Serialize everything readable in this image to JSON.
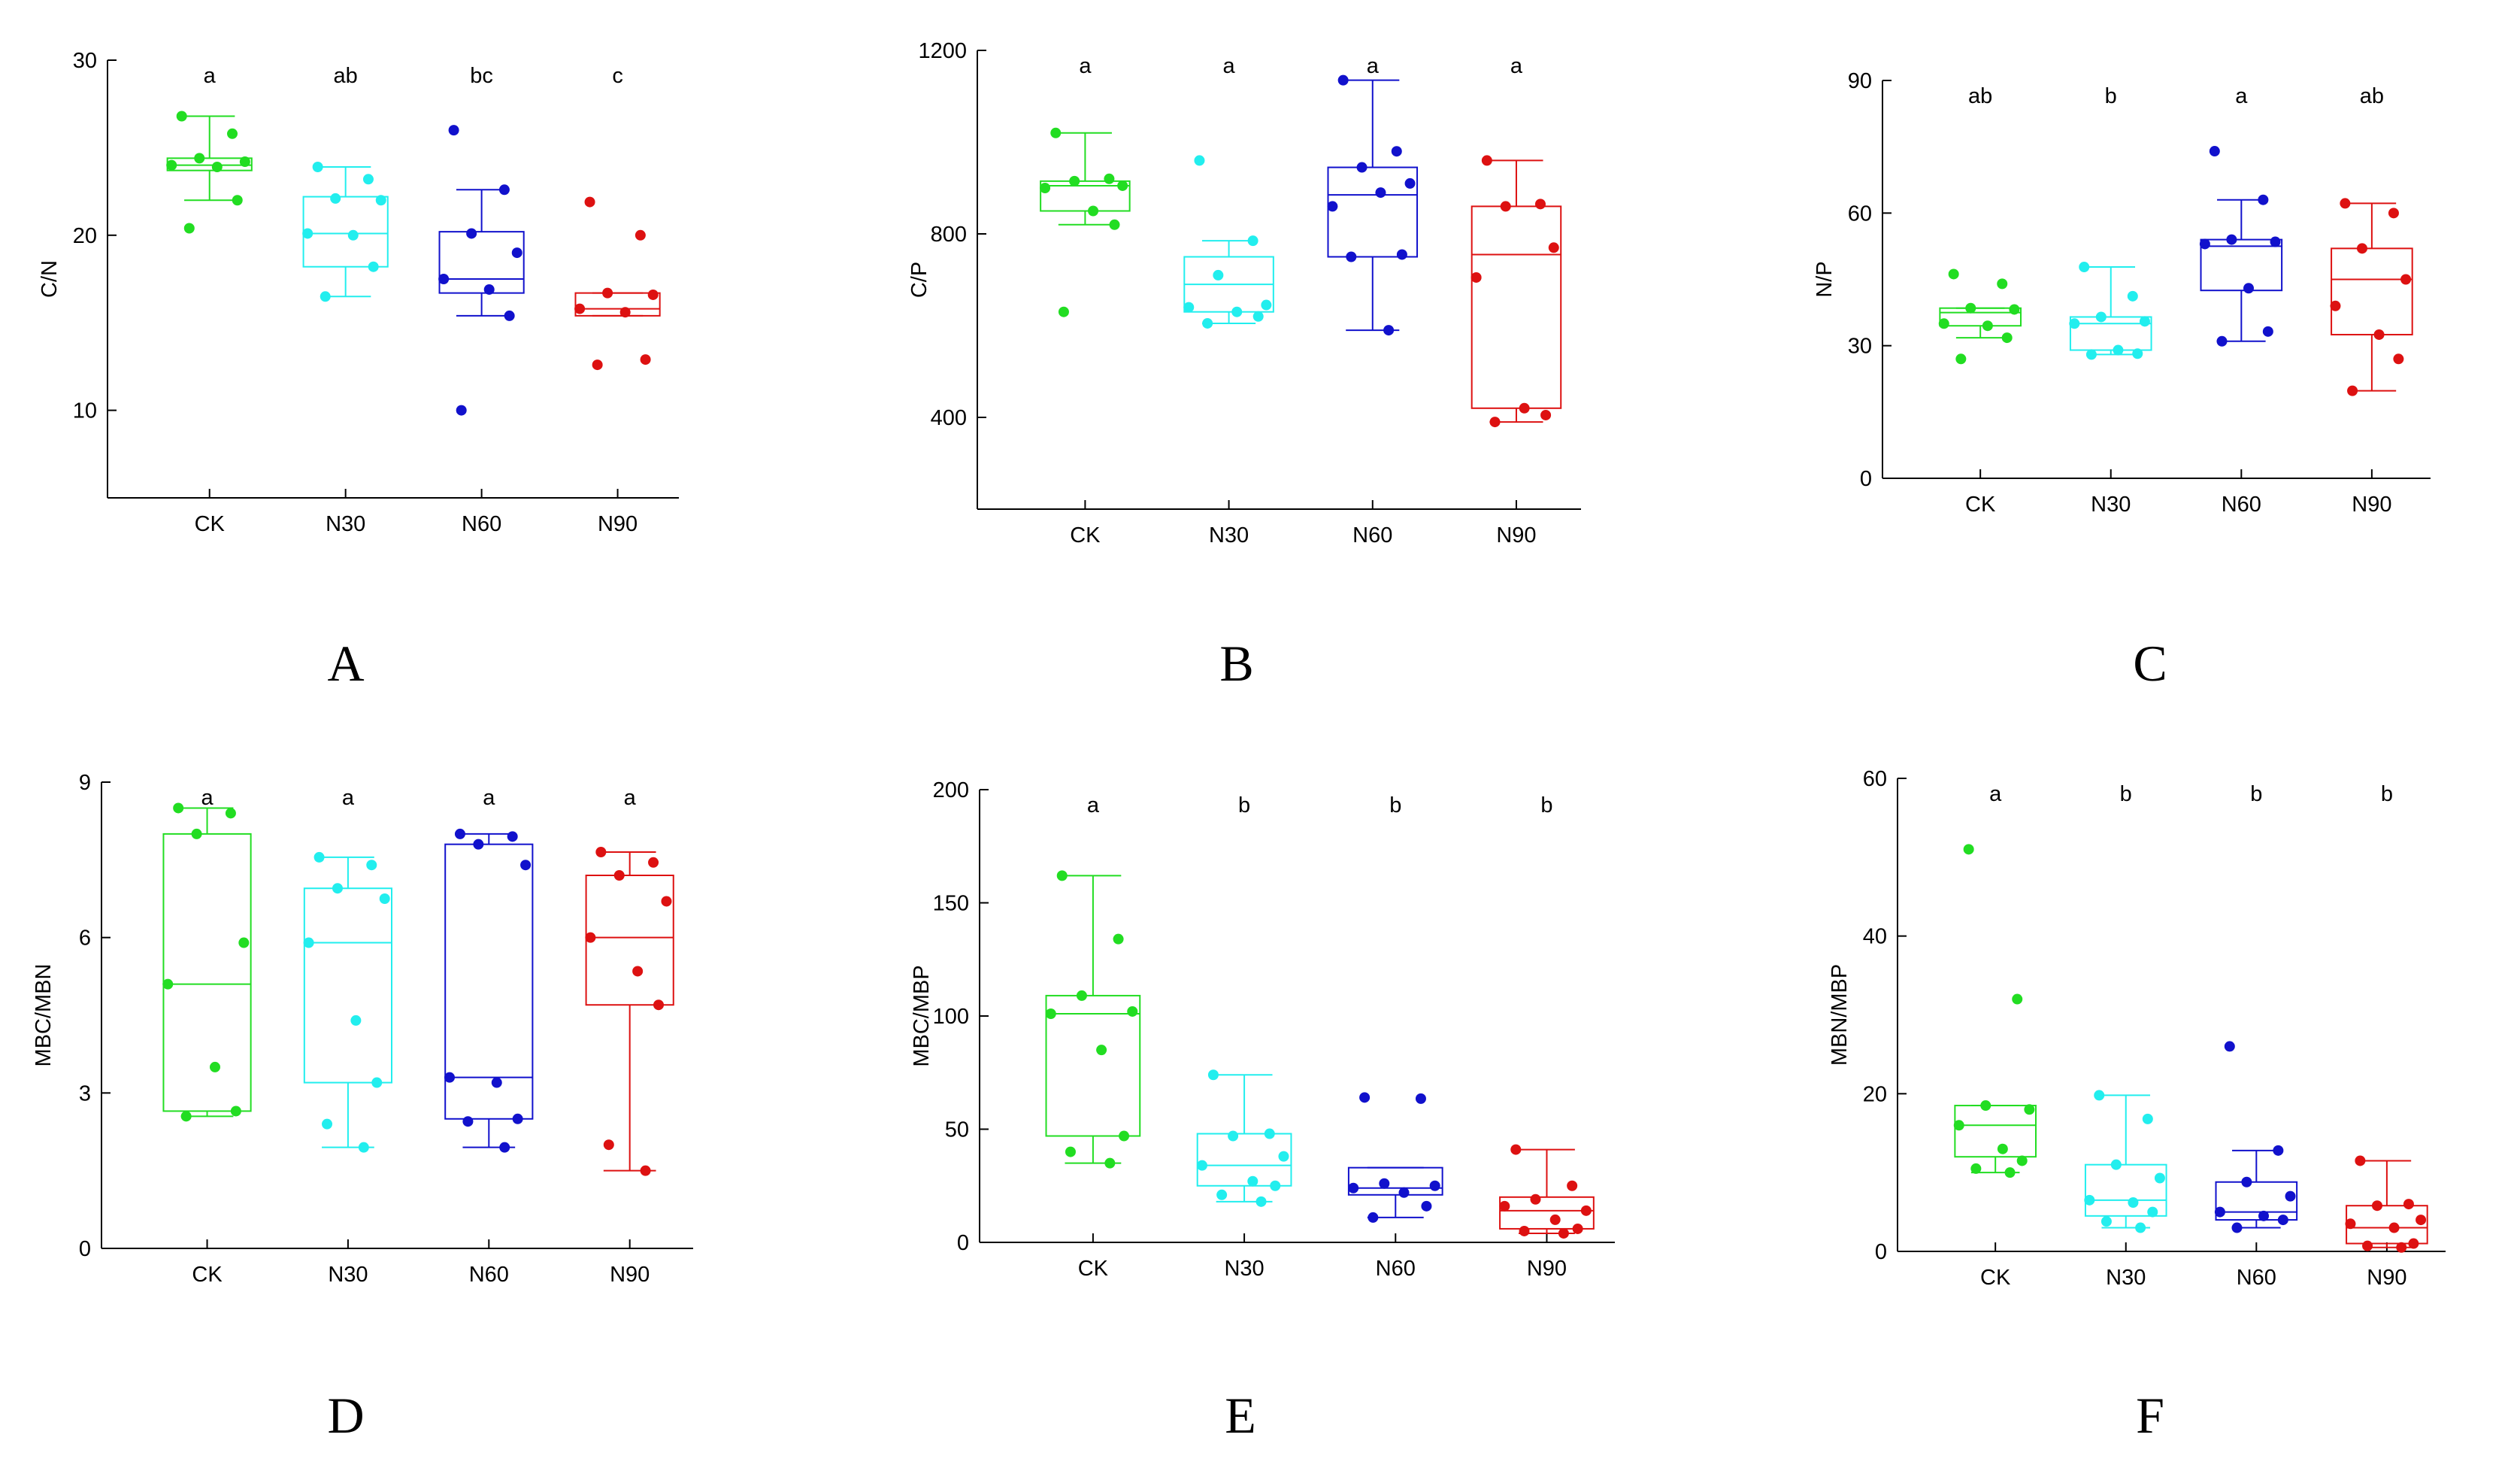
{
  "colors": {
    "CK": "#22dd22",
    "N30": "#22eeee",
    "N60": "#1111cc",
    "N90": "#dd1111",
    "axis": "#000000"
  },
  "chart_data": [
    {
      "type": "box",
      "panel": "A",
      "title": "",
      "xlabel": "",
      "ylabel": "C/N",
      "ylim": [
        5,
        30
      ],
      "yticks": [
        10,
        20,
        30
      ],
      "categories": [
        "CK",
        "N30",
        "N60",
        "N90"
      ],
      "letters": [
        "a",
        "ab",
        "bc",
        "c"
      ],
      "series": [
        {
          "name": "CK",
          "whisker": [
            22.0,
            26.8
          ],
          "q1": 23.7,
          "median": 24.0,
          "q3": 24.4,
          "points": [
            26.8,
            25.8,
            24.4,
            24.2,
            24.0,
            23.9,
            22.0,
            20.4
          ]
        },
        {
          "name": "N30",
          "whisker": [
            16.5,
            23.9
          ],
          "q1": 18.2,
          "median": 20.1,
          "q3": 22.2,
          "points": [
            23.9,
            23.2,
            22.1,
            22.0,
            20.1,
            20.0,
            18.2,
            16.5
          ]
        },
        {
          "name": "N60",
          "whisker": [
            15.4,
            22.6
          ],
          "q1": 16.7,
          "median": 17.5,
          "q3": 20.2,
          "points": [
            26.0,
            22.6,
            20.1,
            19.0,
            17.5,
            16.9,
            15.4,
            10.0
          ]
        },
        {
          "name": "N90",
          "whisker": [
            15.4,
            16.7
          ],
          "q1": 15.4,
          "median": 15.8,
          "q3": 16.7,
          "points": [
            21.9,
            20.0,
            16.7,
            16.6,
            15.8,
            15.6,
            12.9,
            12.6
          ]
        }
      ]
    },
    {
      "type": "box",
      "panel": "B",
      "title": "",
      "xlabel": "",
      "ylabel": "C/P",
      "ylim": [
        200,
        1200
      ],
      "yticks": [
        400,
        800,
        1200
      ],
      "categories": [
        "CK",
        "N30",
        "N60",
        "N90"
      ],
      "letters": [
        "a",
        "a",
        "a",
        "a"
      ],
      "series": [
        {
          "name": "CK",
          "whisker": [
            820,
            1020
          ],
          "q1": 850,
          "median": 905,
          "q3": 915,
          "points": [
            1020,
            920,
            915,
            905,
            900,
            850,
            820,
            630
          ]
        },
        {
          "name": "N30",
          "whisker": [
            605,
            785
          ],
          "q1": 630,
          "median": 690,
          "q3": 750,
          "points": [
            960,
            785,
            710,
            645,
            640,
            630,
            620,
            605
          ]
        },
        {
          "name": "N60",
          "whisker": [
            590,
            1135
          ],
          "q1": 750,
          "median": 885,
          "q3": 945,
          "points": [
            1135,
            980,
            945,
            910,
            860,
            890,
            755,
            750,
            590
          ]
        },
        {
          "name": "N90",
          "whisker": [
            390,
            960
          ],
          "q1": 420,
          "median": 755,
          "q3": 860,
          "points": [
            960,
            865,
            860,
            770,
            705,
            420,
            405,
            390
          ]
        }
      ]
    },
    {
      "type": "box",
      "panel": "C",
      "title": "",
      "xlabel": "",
      "ylabel": "N/P",
      "ylim": [
        0,
        90
      ],
      "yticks": [
        0,
        30,
        60,
        90
      ],
      "categories": [
        "CK",
        "N30",
        "N60",
        "N90"
      ],
      "letters": [
        "ab",
        "b",
        "a",
        "ab"
      ],
      "series": [
        {
          "name": "CK",
          "whisker": [
            31.8,
            38.5
          ],
          "q1": 34.5,
          "median": 37.5,
          "q3": 38.5,
          "points": [
            46.2,
            44.0,
            38.5,
            38.2,
            35.0,
            34.5,
            31.8,
            27.0
          ]
        },
        {
          "name": "N30",
          "whisker": [
            28.0,
            47.8
          ],
          "q1": 29.0,
          "median": 35.0,
          "q3": 36.5,
          "points": [
            47.8,
            41.2,
            36.5,
            35.5,
            35.0,
            29.0,
            28.2,
            28.0
          ]
        },
        {
          "name": "N60",
          "whisker": [
            31.0,
            63.0
          ],
          "q1": 42.5,
          "median": 52.5,
          "q3": 54.0,
          "points": [
            74.0,
            63.0,
            54.0,
            53.5,
            53.0,
            43.0,
            33.2,
            31.0
          ]
        },
        {
          "name": "N90",
          "whisker": [
            19.8,
            62.2
          ],
          "q1": 32.5,
          "median": 45.0,
          "q3": 52.0,
          "points": [
            62.2,
            60.0,
            52.0,
            45.0,
            39.0,
            32.5,
            27.0,
            19.8
          ]
        }
      ]
    },
    {
      "type": "box",
      "panel": "D",
      "title": "",
      "xlabel": "",
      "ylabel": "MBC/MBN",
      "ylim": [
        0,
        9
      ],
      "yticks": [
        0,
        3,
        6,
        9
      ],
      "categories": [
        "CK",
        "N30",
        "N60",
        "N90"
      ],
      "letters": [
        "a",
        "a",
        "a",
        "a"
      ],
      "series": [
        {
          "name": "CK",
          "whisker": [
            2.55,
            8.5
          ],
          "q1": 2.65,
          "median": 5.1,
          "q3": 8.0,
          "points": [
            8.5,
            8.4,
            8.0,
            5.9,
            5.1,
            3.5,
            2.65,
            2.55
          ]
        },
        {
          "name": "N30",
          "whisker": [
            1.95,
            7.55
          ],
          "q1": 3.2,
          "median": 5.9,
          "q3": 6.95,
          "points": [
            7.55,
            7.4,
            6.95,
            6.75,
            5.9,
            4.4,
            3.2,
            2.4,
            1.95
          ]
        },
        {
          "name": "N60",
          "whisker": [
            1.95,
            8.0
          ],
          "q1": 2.5,
          "median": 3.3,
          "q3": 7.8,
          "points": [
            8.0,
            7.95,
            7.8,
            7.4,
            3.3,
            3.2,
            2.5,
            2.45,
            1.95
          ]
        },
        {
          "name": "N90",
          "whisker": [
            1.5,
            7.65
          ],
          "q1": 4.7,
          "median": 6.0,
          "q3": 7.2,
          "points": [
            7.65,
            7.45,
            7.2,
            6.7,
            6.0,
            5.35,
            4.7,
            2.0,
            1.5
          ]
        }
      ]
    },
    {
      "type": "box",
      "panel": "E",
      "title": "",
      "xlabel": "",
      "ylabel": "MBC/MBP",
      "ylim": [
        0,
        200
      ],
      "yticks": [
        0,
        50,
        100,
        150,
        200
      ],
      "categories": [
        "CK",
        "N30",
        "N60",
        "N90"
      ],
      "letters": [
        "a",
        "b",
        "b",
        "b"
      ],
      "series": [
        {
          "name": "CK",
          "whisker": [
            35,
            162
          ],
          "q1": 47,
          "median": 101,
          "q3": 109,
          "points": [
            162,
            134,
            109,
            102,
            101,
            85,
            47,
            40,
            35
          ]
        },
        {
          "name": "N30",
          "whisker": [
            18,
            74
          ],
          "q1": 25,
          "median": 34,
          "q3": 48,
          "points": [
            74,
            48,
            47,
            38,
            34,
            27,
            25,
            21,
            18
          ]
        },
        {
          "name": "N60",
          "whisker": [
            11,
            33
          ],
          "q1": 21,
          "median": 24,
          "q3": 33,
          "points": [
            64,
            63.5,
            26,
            25,
            24,
            22,
            16,
            11
          ]
        },
        {
          "name": "N90",
          "whisker": [
            4,
            41
          ],
          "q1": 6,
          "median": 14,
          "q3": 20,
          "points": [
            41,
            25,
            19,
            14,
            16,
            10,
            6,
            5,
            4
          ]
        }
      ]
    },
    {
      "type": "box",
      "panel": "F",
      "title": "",
      "xlabel": "",
      "ylabel": "MBN/MBP",
      "ylim": [
        0,
        60
      ],
      "yticks": [
        0,
        20,
        40,
        60
      ],
      "categories": [
        "CK",
        "N30",
        "N60",
        "N90"
      ],
      "letters": [
        "a",
        "b",
        "b",
        "b"
      ],
      "series": [
        {
          "name": "CK",
          "whisker": [
            10,
            18.5
          ],
          "q1": 12,
          "median": 16,
          "q3": 18.5,
          "points": [
            51,
            32,
            18.5,
            18,
            16,
            13,
            11.5,
            10.5,
            10
          ]
        },
        {
          "name": "N30",
          "whisker": [
            3,
            19.8
          ],
          "q1": 4.5,
          "median": 6.5,
          "q3": 11,
          "points": [
            19.8,
            16.8,
            11,
            9.3,
            6.5,
            6.2,
            5,
            3.8,
            3
          ]
        },
        {
          "name": "N60",
          "whisker": [
            3,
            12.8
          ],
          "q1": 4,
          "median": 5,
          "q3": 8.8,
          "points": [
            26,
            12.8,
            8.8,
            7,
            5,
            4.5,
            4,
            3
          ]
        },
        {
          "name": "N90",
          "whisker": [
            0.5,
            11.5
          ],
          "q1": 1,
          "median": 3,
          "q3": 5.8,
          "points": [
            11.5,
            6,
            5.8,
            4,
            3.5,
            3,
            1,
            0.7,
            0.5
          ]
        }
      ]
    }
  ]
}
